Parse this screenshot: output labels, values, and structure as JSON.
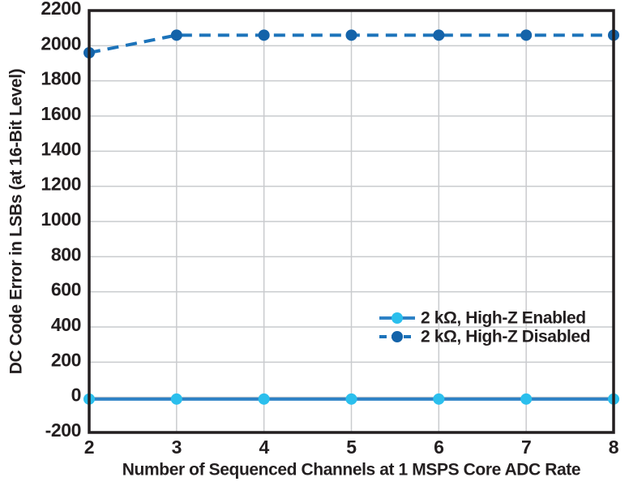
{
  "chart_data": {
    "type": "line",
    "title": "",
    "xlabel": "Number of Sequenced Channels at 1 MSPS Core ADC Rate",
    "ylabel": "DC Code Error in LSBs (at 16-Bit Level)",
    "x": [
      2,
      3,
      4,
      5,
      6,
      7,
      8
    ],
    "xticks": [
      2,
      3,
      4,
      5,
      6,
      7,
      8
    ],
    "yticks": [
      2200,
      2000,
      1800,
      1600,
      1400,
      1200,
      1000,
      800,
      600,
      400,
      200,
      0,
      -200
    ],
    "xlim": [
      2,
      8
    ],
    "ylim": [
      -200,
      2200
    ],
    "grid": true,
    "legend_position": "inside-right-lower-middle",
    "series": [
      {
        "name": "2 kΩ, High-Z Enabled",
        "line_style": "solid",
        "line_color": "#2e82c6",
        "marker_color": "#2bbfed",
        "values": [
          -10,
          -10,
          -10,
          -10,
          -10,
          -10,
          -10
        ]
      },
      {
        "name": "2 kΩ, High-Z Disabled",
        "line_style": "dashed",
        "line_color": "#1c73ba",
        "marker_color": "#1463a9",
        "values": [
          1960,
          2060,
          2060,
          2060,
          2060,
          2060,
          2060
        ]
      }
    ],
    "colors": {
      "axis": "#231f20",
      "grid": "#c9cbce",
      "background": "#ffffff"
    }
  }
}
